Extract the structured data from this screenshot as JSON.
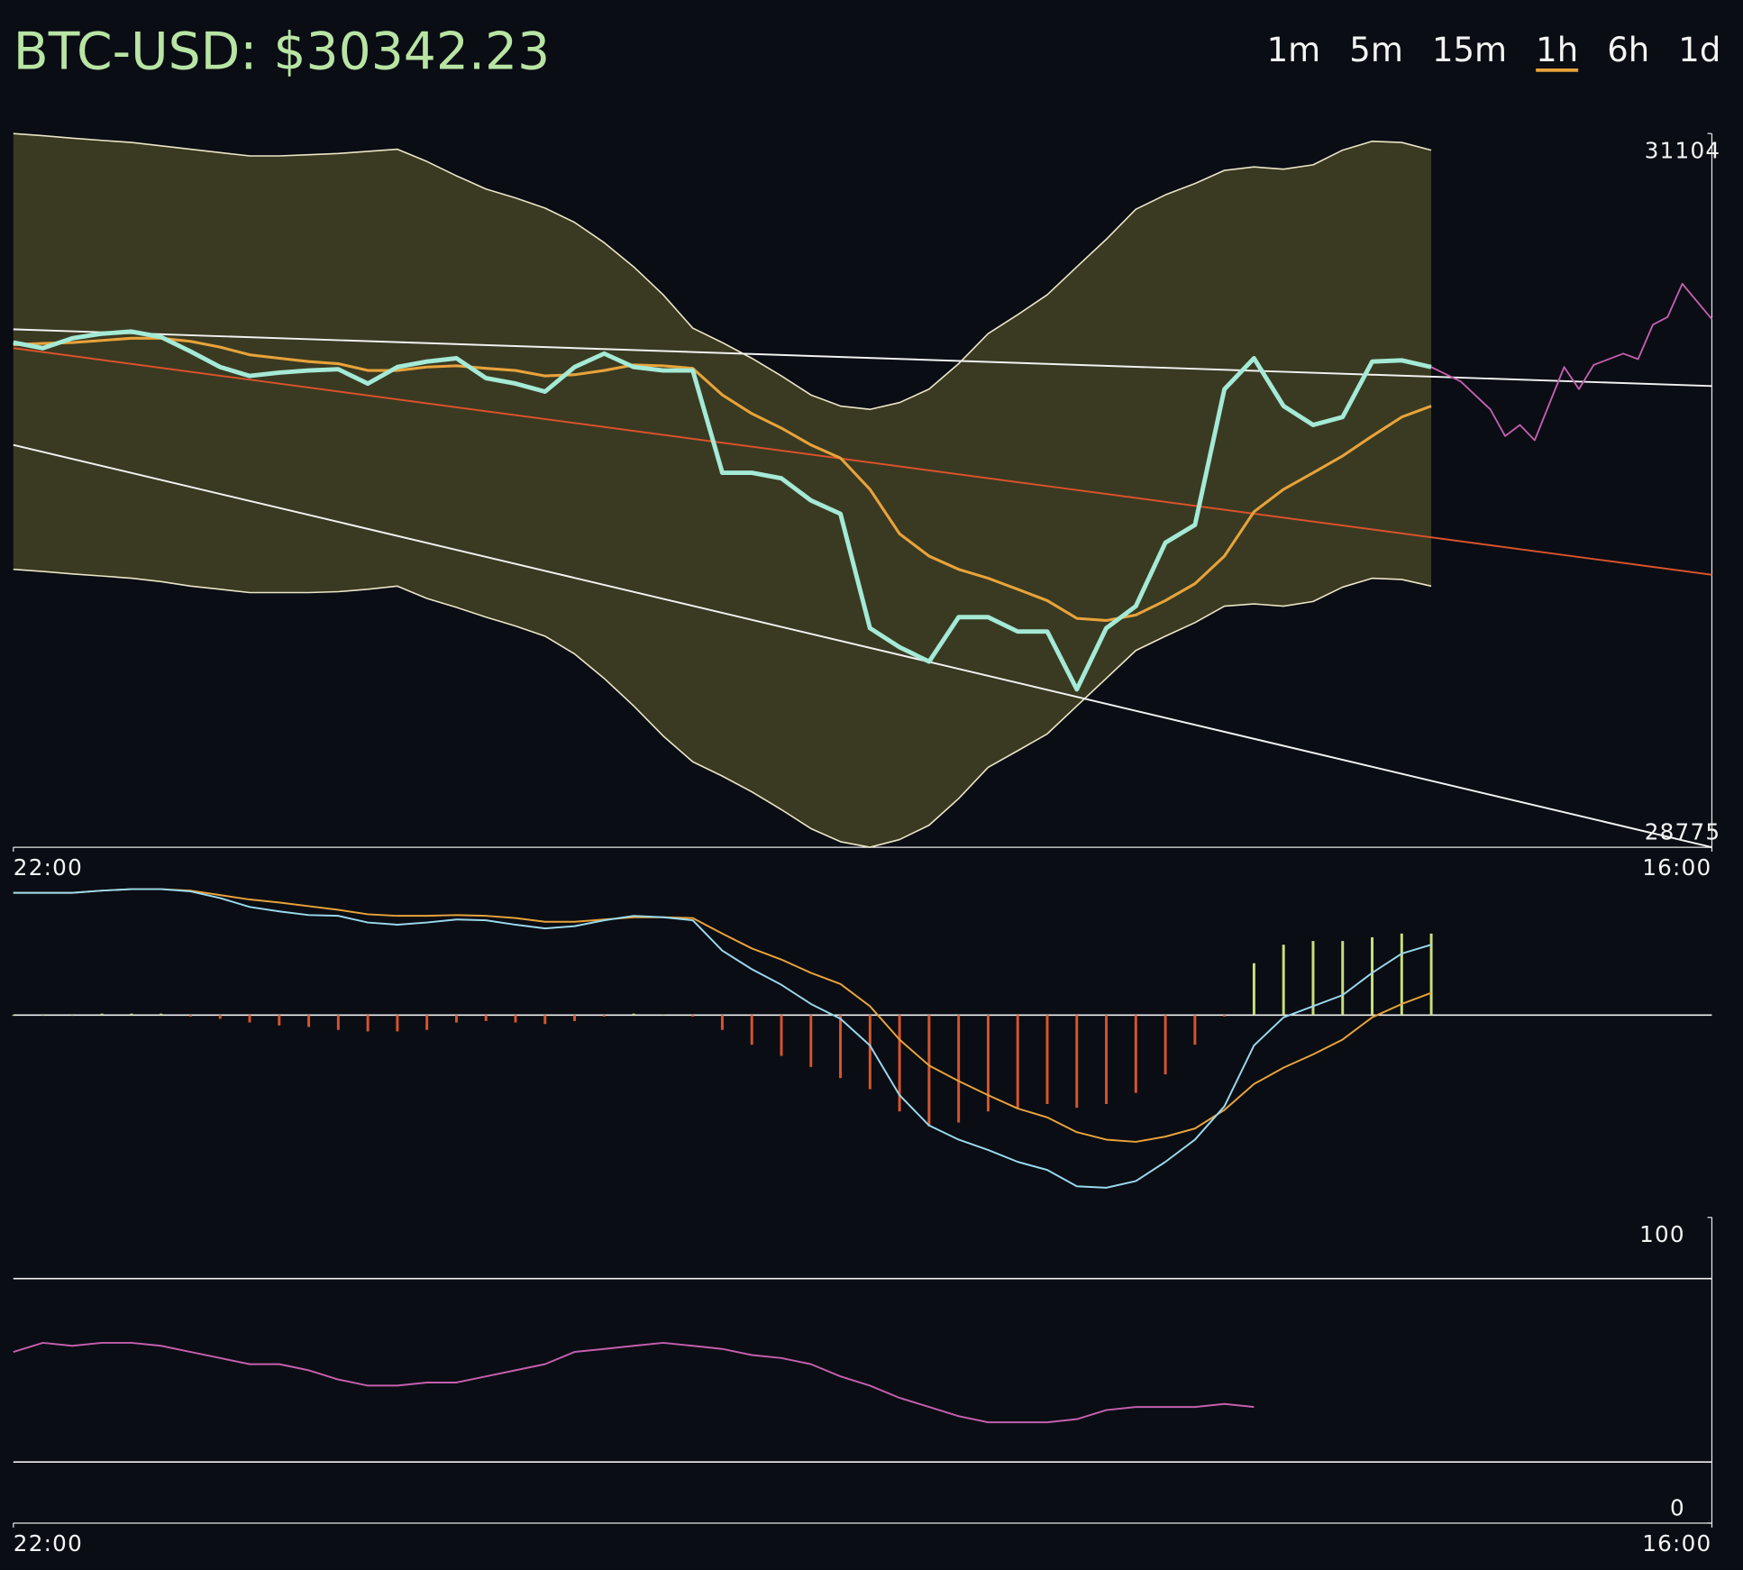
{
  "header": {
    "title": "BTC-USD: $30342.23",
    "timeframes": [
      "1m",
      "5m",
      "15m",
      "1h",
      "6h",
      "1d"
    ],
    "selected": 3,
    "selected_color": "#e8a33a"
  },
  "chart_data": [
    {
      "type": "price",
      "x": [
        0,
        2,
        4,
        6,
        8,
        10,
        12,
        14,
        16,
        18,
        20,
        22,
        24,
        26,
        28,
        30,
        32,
        34,
        36,
        38,
        40,
        42,
        44,
        46,
        48,
        50,
        52,
        54,
        56,
        58,
        60,
        62,
        64,
        66,
        68,
        70,
        72,
        74,
        76,
        78,
        80,
        82,
        84,
        86,
        88,
        90,
        92,
        94,
        96
      ],
      "xlim": [
        0,
        115
      ],
      "xticks": [
        {
          "value": 0,
          "label": "22:00"
        },
        {
          "value": 115,
          "label": "16:00"
        }
      ],
      "ylim": [
        28775,
        31104
      ],
      "yticks": [
        28775,
        31104
      ],
      "band": {
        "color": "#3a3a22",
        "edge_color": "#ece6c8",
        "upper": [
          31104,
          31097,
          31089,
          31082,
          31075,
          31064,
          31053,
          31042,
          31031,
          31031,
          31035,
          31039,
          31046,
          31053,
          31013,
          30966,
          30923,
          30894,
          30861,
          30814,
          30748,
          30669,
          30578,
          30469,
          30422,
          30371,
          30313,
          30251,
          30215,
          30204,
          30226,
          30270,
          30353,
          30451,
          30513,
          30578,
          30669,
          30759,
          30857,
          30904,
          30941,
          30984,
          30995,
          30988,
          31002,
          31050,
          31079,
          31075,
          31050
        ],
        "lower": [
          29682,
          29675,
          29667,
          29660,
          29653,
          29642,
          29627,
          29617,
          29606,
          29606,
          29606,
          29609,
          29617,
          29627,
          29587,
          29558,
          29526,
          29497,
          29464,
          29406,
          29326,
          29236,
          29138,
          29054,
          29007,
          28956,
          28898,
          28836,
          28793,
          28775,
          28800,
          28847,
          28934,
          29036,
          29090,
          29145,
          29236,
          29326,
          29417,
          29464,
          29508,
          29562,
          29569,
          29562,
          29577,
          29624,
          29653,
          29649,
          29627
        ]
      },
      "lines": [
        {
          "color": "#f2f2f2",
          "x": [
            0,
            115
          ],
          "values": [
            30465,
            30280
          ]
        },
        {
          "color": "#f2f2f2",
          "x": [
            0,
            115
          ],
          "values": [
            30088,
            28775
          ]
        },
        {
          "color": "#d9532b",
          "x": [
            0,
            115
          ],
          "values": [
            30404,
            29664
          ]
        }
      ],
      "forecast": {
        "color": "#c45fae",
        "x": [
          96,
          98,
          100,
          101,
          102,
          103,
          105,
          106,
          107,
          109,
          110,
          111,
          112,
          113,
          115
        ],
        "values": [
          30342,
          30295,
          30204,
          30117,
          30153,
          30103,
          30342,
          30270,
          30349,
          30386,
          30368,
          30480,
          30505,
          30614,
          30498
        ]
      },
      "series": [
        {
          "color": "#e8a33a",
          "values": [
            30415,
            30419,
            30422,
            30429,
            30436,
            30436,
            30426,
            30407,
            30382,
            30371,
            30360,
            30353,
            30331,
            30331,
            30342,
            30346,
            30338,
            30331,
            30313,
            30317,
            30331,
            30349,
            30346,
            30338,
            30251,
            30190,
            30143,
            30088,
            30045,
            29943,
            29798,
            29725,
            29682,
            29653,
            29617,
            29580,
            29522,
            29515,
            29533,
            29580,
            29635,
            29725,
            29870,
            29943,
            29997,
            30052,
            30117,
            30179,
            30215
          ]
        },
        {
          "color": "#a4ead6",
          "values": [
            30422,
            30404,
            30436,
            30451,
            30458,
            30440,
            30393,
            30342,
            30313,
            30324,
            30331,
            30335,
            30288,
            30342,
            30360,
            30371,
            30306,
            30288,
            30262,
            30342,
            30386,
            30342,
            30331,
            30331,
            29997,
            29997,
            29979,
            29907,
            29863,
            29490,
            29428,
            29381,
            29526,
            29526,
            29479,
            29479,
            29290,
            29490,
            29562,
            29769,
            29827,
            30270,
            30371,
            30215,
            30153,
            30179,
            30360,
            30364,
            30342
          ]
        }
      ]
    },
    {
      "type": "macd",
      "x": [
        0,
        2,
        4,
        6,
        8,
        10,
        12,
        14,
        16,
        18,
        20,
        22,
        24,
        26,
        28,
        30,
        32,
        34,
        36,
        38,
        40,
        42,
        44,
        46,
        48,
        50,
        52,
        54,
        56,
        58,
        60,
        62,
        64,
        66,
        68,
        70,
        72,
        74,
        76,
        78,
        80,
        82,
        84,
        86,
        88,
        90,
        92,
        94,
        96
      ],
      "xlim": [
        0,
        115
      ],
      "ylim": [
        -240,
        180
      ],
      "histogram": {
        "positive_color": "#c8e07a",
        "negative_color": "#d9532b",
        "values": [
          0,
          0,
          0,
          2,
          2,
          2,
          -2,
          -5,
          -10,
          -14,
          -16,
          -20,
          -22,
          -22,
          -20,
          -10,
          -8,
          -10,
          -12,
          -8,
          -2,
          2,
          1,
          -2,
          -20,
          -40,
          -55,
          -70,
          -85,
          -100,
          -130,
          -150,
          -145,
          -130,
          -125,
          -120,
          -125,
          -120,
          -105,
          -80,
          -40,
          -2,
          70,
          95,
          100,
          100,
          105,
          110,
          110
        ]
      },
      "series": [
        {
          "color": "#e8a33a",
          "values": [
            165,
            165,
            165,
            168,
            170,
            170,
            168,
            162,
            156,
            152,
            147,
            142,
            136,
            134,
            134,
            135,
            134,
            131,
            126,
            126,
            129,
            132,
            132,
            131,
            110,
            90,
            75,
            57,
            42,
            12,
            -33,
            -68,
            -89,
            -108,
            -126,
            -138,
            -158,
            -168,
            -171,
            -164,
            -153,
            -128,
            -93,
            -71,
            -53,
            -33,
            -3,
            15,
            30
          ]
        },
        {
          "color": "#9ad8ec",
          "values": [
            165,
            165,
            165,
            168,
            170,
            170,
            167,
            158,
            146,
            140,
            135,
            134,
            125,
            122,
            125,
            129,
            128,
            122,
            117,
            120,
            128,
            134,
            132,
            128,
            87,
            62,
            41,
            15,
            -5,
            -41,
            -108,
            -149,
            -168,
            -182,
            -198,
            -209,
            -231,
            -233,
            -224,
            -198,
            -168,
            -123,
            -41,
            -3,
            12,
            27,
            57,
            83,
            95
          ]
        }
      ]
    },
    {
      "type": "rsi",
      "x": [
        0,
        2,
        4,
        6,
        8,
        10,
        12,
        14,
        16,
        18,
        20,
        22,
        24,
        26,
        28,
        30,
        32,
        34,
        36,
        38,
        40,
        42,
        44,
        46,
        48,
        50,
        52,
        54,
        56,
        58,
        60,
        62,
        64,
        66,
        68,
        70,
        72,
        74,
        76,
        78,
        80,
        82,
        84,
        86,
        88,
        90,
        92,
        94,
        96
      ],
      "xlim": [
        0,
        115
      ],
      "xticks": [
        {
          "value": 0,
          "label": "22:00"
        },
        {
          "value": 115,
          "label": "16:00"
        }
      ],
      "ylim": [
        0,
        100
      ],
      "yticks": [
        0,
        100
      ],
      "levels": [
        20,
        80
      ],
      "series": [
        {
          "color": "#c45fae",
          "values": [
            56,
            59,
            58,
            59,
            59,
            58,
            56,
            54,
            52,
            52,
            50,
            47,
            45,
            45,
            46,
            46,
            48,
            50,
            52,
            56,
            57,
            58,
            59,
            58,
            57,
            55,
            54,
            52,
            48,
            45,
            41,
            38,
            35,
            33,
            33,
            33,
            34,
            37,
            38,
            38,
            38,
            39,
            38,
            null,
            null,
            null,
            null,
            null,
            null
          ]
        }
      ]
    }
  ]
}
